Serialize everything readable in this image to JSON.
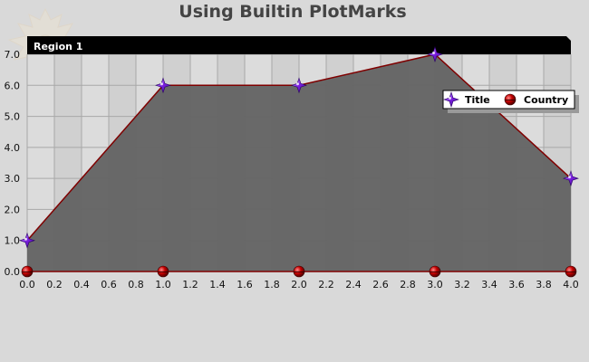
{
  "chart_data": {
    "type": "area",
    "title": "Using Builtin PlotMarks",
    "region_label": "Region 1",
    "x": [
      0,
      1,
      2,
      3,
      4
    ],
    "series": [
      {
        "name": "Title",
        "values": [
          1,
          6,
          6,
          7,
          3
        ],
        "marker": "diamond-star",
        "color": "#7f0000",
        "marker_color": "#7b1fe0"
      },
      {
        "name": "Country",
        "values": [
          0,
          0,
          0,
          0,
          0
        ],
        "marker": "sphere",
        "color": "#7f0000",
        "marker_color": "#c00000"
      }
    ],
    "fill_color": "#666666",
    "xlim": [
      0,
      4
    ],
    "ylim": [
      0,
      7
    ],
    "x_ticks": [
      "0.0",
      "0.2",
      "0.4",
      "0.6",
      "0.8",
      "1.0",
      "1.2",
      "1.4",
      "1.6",
      "1.8",
      "2.0",
      "2.2",
      "2.4",
      "2.6",
      "2.8",
      "3.0",
      "3.2",
      "3.4",
      "3.6",
      "3.8",
      "4.0"
    ],
    "y_ticks": [
      "0.0",
      "1.0",
      "2.0",
      "3.0",
      "4.0",
      "5.0",
      "6.0",
      "7.0"
    ],
    "grid": true,
    "legend_position": "right"
  }
}
